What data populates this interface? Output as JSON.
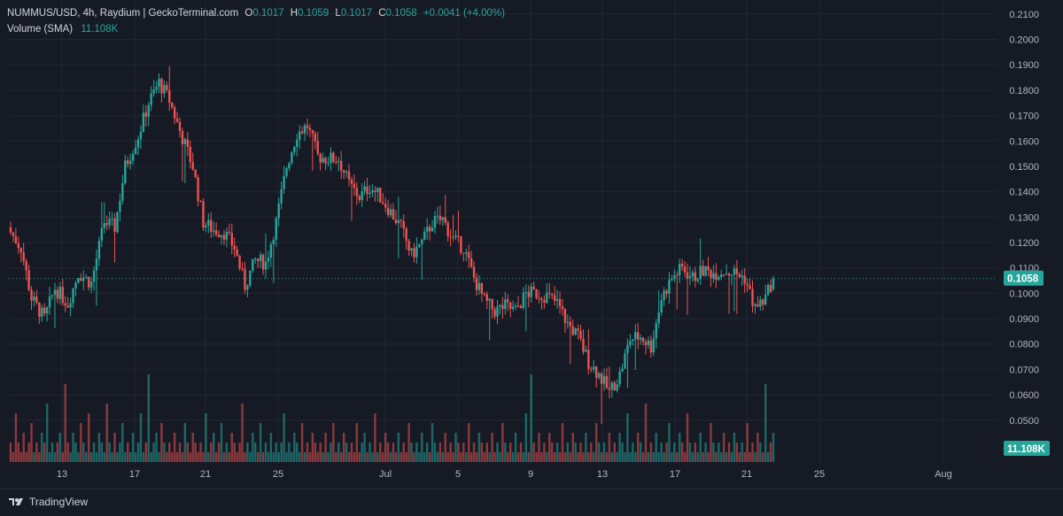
{
  "legend": {
    "symbol": "NUMMUS/USD, 4h, Raydium | GeckoTerminal.com",
    "o_label": "O",
    "o_value": "0.1017",
    "h_label": "H",
    "h_value": "0.1059",
    "l_label": "L",
    "l_value": "0.1017",
    "c_label": "C",
    "c_value": "0.1058",
    "change": "+0.0041 (+4.00%)",
    "volume_label": "Volume (SMA)",
    "volume_value": "11.108K"
  },
  "footer": {
    "brand": "TradingView"
  },
  "colors": {
    "up": "#26a69a",
    "down": "#ef5350",
    "background": "#161a25",
    "grid": "#222632",
    "axis_text": "#b2b5be"
  },
  "chart_data": {
    "type": "candlestick",
    "title": "NUMMUS/USD, 4h, Raydium | GeckoTerminal.com",
    "price_ticks": [
      "0.2100",
      "0.2000",
      "0.1900",
      "0.1800",
      "0.1700",
      "0.1600",
      "0.1500",
      "0.1400",
      "0.1300",
      "0.1200",
      "0.1100",
      "0.1000",
      "0.0900",
      "0.0800",
      "0.0700",
      "0.0600",
      "0.0500"
    ],
    "ylim": [
      0.044,
      0.211
    ],
    "x_ticks": [
      "13",
      "17",
      "21",
      "25",
      "Jul",
      "5",
      "9",
      "13",
      "17",
      "21",
      "25",
      "Aug"
    ],
    "last_price": "0.1058",
    "last_volume": "11.108K",
    "series_close_path": [
      [
        0,
        0.124
      ],
      [
        4,
        0.118
      ],
      [
        8,
        0.098
      ],
      [
        13,
        0.09
      ],
      [
        17,
        0.102
      ],
      [
        22,
        0.096
      ],
      [
        26,
        0.108
      ],
      [
        31,
        0.104
      ],
      [
        36,
        0.128
      ],
      [
        40,
        0.126
      ],
      [
        44,
        0.15
      ],
      [
        49,
        0.162
      ],
      [
        53,
        0.175
      ],
      [
        57,
        0.183
      ],
      [
        61,
        0.176
      ],
      [
        65,
        0.164
      ],
      [
        70,
        0.15
      ],
      [
        74,
        0.128
      ],
      [
        78,
        0.125
      ],
      [
        82,
        0.124
      ],
      [
        86,
        0.118
      ],
      [
        90,
        0.103
      ],
      [
        94,
        0.113
      ],
      [
        98,
        0.112
      ],
      [
        102,
        0.128
      ],
      [
        106,
        0.15
      ],
      [
        110,
        0.163
      ],
      [
        114,
        0.166
      ],
      [
        118,
        0.154
      ],
      [
        122,
        0.153
      ],
      [
        126,
        0.153
      ],
      [
        130,
        0.143
      ],
      [
        134,
        0.138
      ],
      [
        138,
        0.142
      ],
      [
        142,
        0.138
      ],
      [
        146,
        0.132
      ],
      [
        150,
        0.126
      ],
      [
        154,
        0.115
      ],
      [
        158,
        0.12
      ],
      [
        162,
        0.128
      ],
      [
        166,
        0.129
      ],
      [
        170,
        0.121
      ],
      [
        174,
        0.118
      ],
      [
        178,
        0.106
      ],
      [
        182,
        0.097
      ],
      [
        186,
        0.093
      ],
      [
        190,
        0.095
      ],
      [
        194,
        0.093
      ],
      [
        198,
        0.1
      ],
      [
        202,
        0.1
      ],
      [
        206,
        0.099
      ],
      [
        210,
        0.096
      ],
      [
        214,
        0.088
      ],
      [
        218,
        0.083
      ],
      [
        222,
        0.073
      ],
      [
        226,
        0.068
      ],
      [
        230,
        0.061
      ],
      [
        234,
        0.068
      ],
      [
        238,
        0.082
      ],
      [
        242,
        0.083
      ],
      [
        246,
        0.079
      ],
      [
        250,
        0.098
      ],
      [
        254,
        0.106
      ],
      [
        258,
        0.11
      ],
      [
        262,
        0.106
      ],
      [
        266,
        0.109
      ],
      [
        270,
        0.108
      ],
      [
        274,
        0.109
      ],
      [
        278,
        0.108
      ],
      [
        282,
        0.106
      ],
      [
        286,
        0.094
      ],
      [
        290,
        0.098
      ],
      [
        293,
        0.1058
      ]
    ],
    "volume_series": [
      2,
      1,
      5,
      2,
      1,
      3,
      1,
      2,
      4,
      1,
      2,
      1,
      3,
      2,
      6,
      1,
      2,
      1,
      2,
      3,
      1,
      8,
      2,
      1,
      3,
      2,
      1,
      4,
      2,
      1,
      5,
      1,
      2,
      1,
      3,
      2,
      1,
      6,
      2,
      1,
      3,
      1,
      2,
      4,
      1,
      2,
      1,
      3,
      1,
      2,
      5,
      1,
      2,
      9,
      1,
      2,
      3,
      1,
      4,
      2,
      1,
      2,
      1,
      3,
      1,
      2,
      1,
      4,
      2,
      1,
      3,
      2,
      1,
      2,
      1,
      5,
      1,
      2,
      3,
      1,
      2,
      4,
      1,
      2,
      1,
      3,
      2,
      1,
      2,
      6,
      1,
      2,
      1,
      3,
      2,
      1,
      4,
      1,
      2,
      1,
      3,
      1,
      2,
      1,
      2,
      5,
      1,
      2,
      1,
      3,
      2,
      1,
      4,
      1,
      2,
      1,
      3,
      2,
      1,
      2,
      1,
      3,
      1,
      2,
      4,
      1,
      2,
      1,
      3,
      2,
      1,
      2,
      1,
      4,
      1,
      2,
      3,
      1,
      2,
      1,
      5,
      1,
      2,
      1,
      3,
      2,
      1,
      2,
      1,
      3,
      1,
      2,
      1,
      4,
      2,
      1,
      2,
      1,
      3,
      1,
      2,
      1,
      4,
      2,
      1,
      2,
      1,
      3,
      1,
      2,
      1,
      3,
      2,
      1,
      2,
      1,
      4,
      1,
      2,
      1,
      3,
      2,
      1,
      2,
      1,
      3,
      1,
      2,
      1,
      4,
      2,
      1,
      2,
      1,
      3,
      1,
      2,
      1,
      5,
      1,
      9,
      2,
      1,
      3,
      1,
      2,
      1,
      3,
      2,
      1,
      2,
      1,
      4,
      1,
      2,
      1,
      3,
      2,
      1,
      2,
      1,
      3,
      1,
      2,
      1,
      4,
      2,
      1,
      2,
      1,
      3,
      1,
      2,
      1,
      3,
      2,
      1,
      5,
      1,
      2,
      1,
      3,
      2,
      1,
      6,
      1,
      2,
      1,
      3,
      1,
      2,
      1,
      2,
      4,
      1,
      2,
      1,
      3,
      2,
      1,
      5,
      2,
      1,
      2,
      1,
      3,
      1,
      2,
      1,
      4,
      2,
      1,
      2,
      1,
      3,
      1,
      2,
      1,
      3,
      2,
      1,
      2,
      1,
      4,
      1,
      2,
      1,
      3,
      2,
      1,
      8,
      1,
      2,
      3,
      1,
      2,
      1,
      3,
      2,
      1,
      2,
      1
    ]
  }
}
